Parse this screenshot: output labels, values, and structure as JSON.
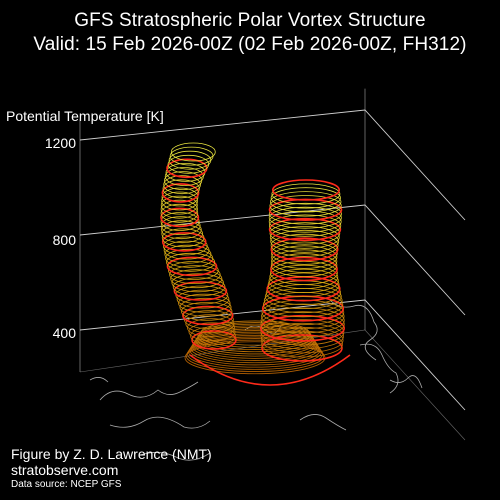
{
  "chart_data": {
    "type": "3d-isosurface",
    "title": "GFS Stratospheric Polar Vortex Structure",
    "subtitle": "Valid: 15 Feb 2026-00Z  (02 Feb 2026-00Z, FH312)",
    "zlabel": "Potential Temperature [K]",
    "z_ticks": [
      "400",
      "800",
      "1200"
    ],
    "z_values": [
      400,
      800,
      1200
    ],
    "zlim": [
      300,
      1300
    ],
    "colors": {
      "background": "#000000",
      "grid": "#cfcfcf",
      "coastline": "#aaaaaa",
      "contour_low": "#c06000",
      "contour_mid": "#d4a000",
      "contour_high": "#e8e040",
      "ring": "#ff2a1a"
    }
  },
  "credits": {
    "author": "Figure by Z. D. Lawrence (NMT)",
    "site": "stratobserve.com",
    "source": "Data source: NCEP GFS"
  }
}
